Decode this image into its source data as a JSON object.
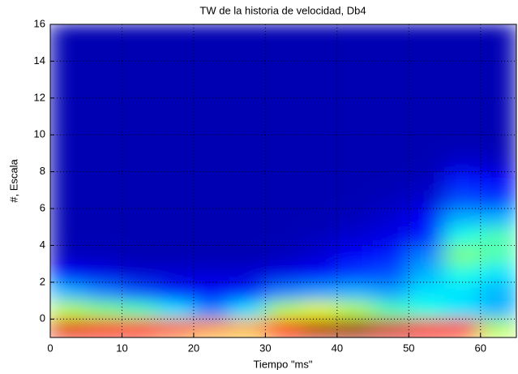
{
  "chart_data": {
    "type": "heatmap",
    "title": "TW de la historia de velocidad, Db4",
    "xlabel": "Tiempo \"ms\"",
    "ylabel": "#, Escala",
    "xlim": [
      0,
      65
    ],
    "ylim": [
      -1,
      16
    ],
    "xticks": [
      0,
      10,
      20,
      30,
      40,
      50,
      60
    ],
    "yticks": [
      0,
      2,
      4,
      6,
      8,
      10,
      12,
      14,
      16
    ],
    "grid": true,
    "colormap": "jet",
    "z": [
      [
        0.9,
        0.88,
        0.85,
        0.78,
        0.72,
        0.7,
        0.85,
        0.95,
        0.97,
        0.92,
        0.88,
        0.82,
        0.55
      ],
      [
        0.55,
        0.5,
        0.45,
        0.35,
        0.25,
        0.35,
        0.55,
        0.6,
        0.55,
        0.45,
        0.4,
        0.35,
        0.3
      ],
      [
        0.3,
        0.25,
        0.2,
        0.15,
        0.12,
        0.15,
        0.25,
        0.28,
        0.3,
        0.28,
        0.35,
        0.35,
        0.3
      ],
      [
        0.12,
        0.1,
        0.08,
        0.08,
        0.08,
        0.08,
        0.1,
        0.12,
        0.18,
        0.2,
        0.3,
        0.4,
        0.35
      ],
      [
        0.06,
        0.06,
        0.05,
        0.05,
        0.05,
        0.05,
        0.06,
        0.08,
        0.12,
        0.15,
        0.25,
        0.5,
        0.45
      ],
      [
        0.05,
        0.05,
        0.05,
        0.05,
        0.05,
        0.05,
        0.05,
        0.06,
        0.08,
        0.1,
        0.15,
        0.4,
        0.45
      ],
      [
        0.05,
        0.05,
        0.05,
        0.05,
        0.05,
        0.05,
        0.05,
        0.05,
        0.06,
        0.08,
        0.12,
        0.3,
        0.3
      ],
      [
        0.05,
        0.05,
        0.05,
        0.05,
        0.05,
        0.05,
        0.05,
        0.05,
        0.05,
        0.06,
        0.08,
        0.2,
        0.18
      ],
      [
        0.05,
        0.05,
        0.05,
        0.05,
        0.05,
        0.05,
        0.05,
        0.05,
        0.05,
        0.05,
        0.06,
        0.15,
        0.12
      ],
      [
        0.05,
        0.05,
        0.05,
        0.05,
        0.05,
        0.05,
        0.05,
        0.05,
        0.05,
        0.05,
        0.05,
        0.08,
        0.07
      ],
      [
        0.05,
        0.05,
        0.05,
        0.05,
        0.05,
        0.05,
        0.05,
        0.05,
        0.05,
        0.05,
        0.05,
        0.05,
        0.05
      ],
      [
        0.05,
        0.05,
        0.05,
        0.05,
        0.05,
        0.05,
        0.05,
        0.05,
        0.05,
        0.05,
        0.05,
        0.05,
        0.05
      ],
      [
        0.05,
        0.05,
        0.05,
        0.05,
        0.05,
        0.05,
        0.05,
        0.05,
        0.05,
        0.05,
        0.05,
        0.05,
        0.05
      ],
      [
        0.05,
        0.05,
        0.05,
        0.05,
        0.05,
        0.05,
        0.05,
        0.05,
        0.05,
        0.05,
        0.05,
        0.05,
        0.05
      ],
      [
        0.05,
        0.05,
        0.05,
        0.05,
        0.05,
        0.05,
        0.05,
        0.05,
        0.05,
        0.05,
        0.05,
        0.05,
        0.05
      ],
      [
        0.05,
        0.05,
        0.05,
        0.05,
        0.05,
        0.05,
        0.05,
        0.05,
        0.05,
        0.05,
        0.05,
        0.05,
        0.05
      ],
      [
        0.05,
        0.05,
        0.05,
        0.05,
        0.05,
        0.05,
        0.05,
        0.05,
        0.05,
        0.05,
        0.05,
        0.05,
        0.05
      ]
    ]
  }
}
